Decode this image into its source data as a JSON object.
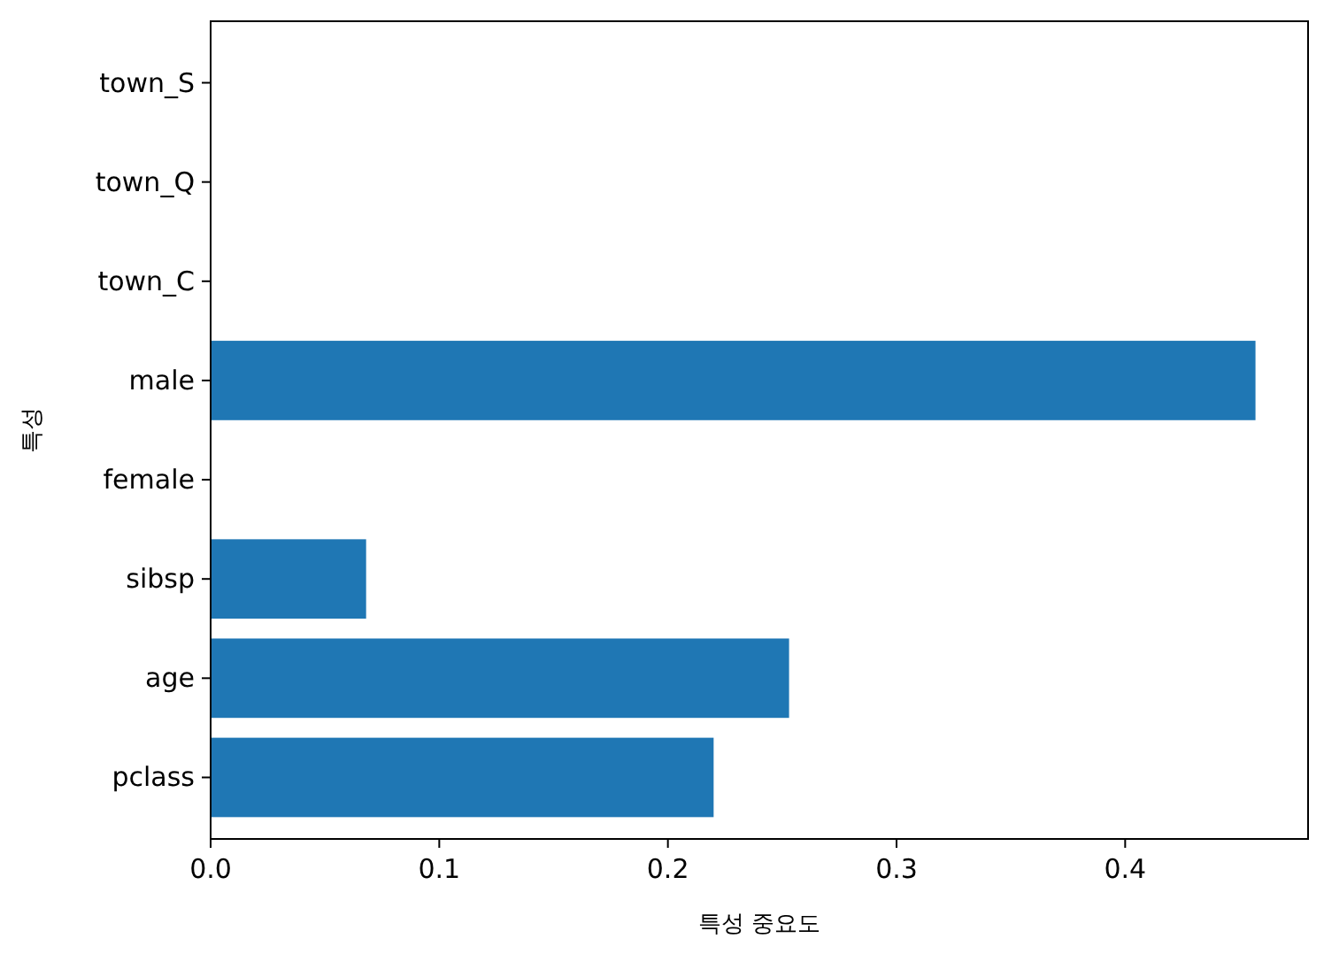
{
  "chart_data": {
    "type": "bar",
    "orientation": "horizontal",
    "xlabel": "특성 중요도",
    "ylabel": "특성",
    "categories": [
      "town_S",
      "town_Q",
      "town_C",
      "male",
      "female",
      "sibsp",
      "age",
      "pclass"
    ],
    "values": [
      0,
      0,
      0,
      0.457,
      0,
      0.068,
      0.253,
      0.22
    ],
    "color": "#1f77b4",
    "xlim": [
      0,
      0.48
    ],
    "xticks": [
      {
        "value": 0,
        "label": "0.0"
      },
      0.1,
      0.2,
      0.3,
      0.4
    ],
    "grid": false
  }
}
